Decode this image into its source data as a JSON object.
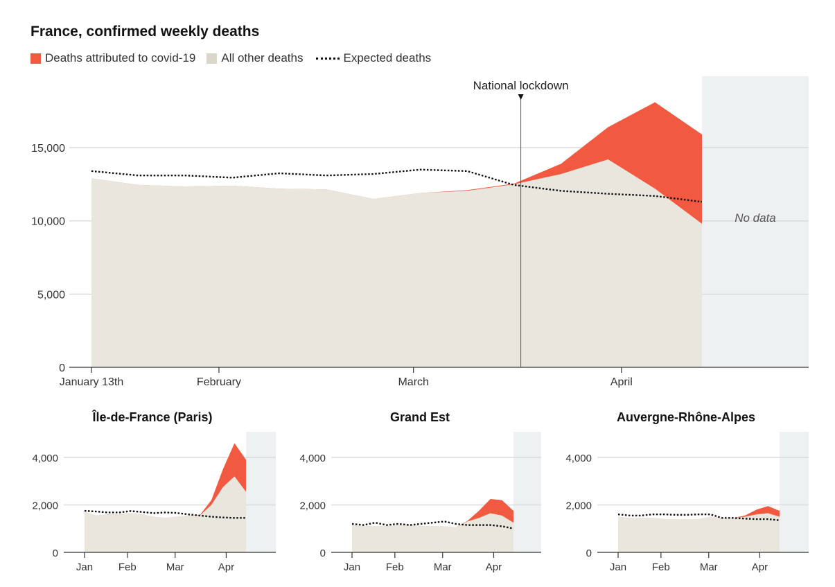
{
  "title": "France, confirmed weekly deaths",
  "legend": {
    "covid": "Deaths attributed to covid-19",
    "other": "All other deaths",
    "expected": "Expected deaths"
  },
  "colors": {
    "covid": "#f15a40",
    "other": "#e9e6de",
    "no_data": "#eef1f2",
    "grid": "#d8dcdf"
  },
  "chart_data": [
    {
      "type": "area",
      "title": "France, confirmed weekly deaths",
      "x": [
        "2020-01-13",
        "2020-01-20",
        "2020-01-27",
        "2020-02-03",
        "2020-02-10",
        "2020-02-17",
        "2020-02-24",
        "2020-03-02",
        "2020-03-09",
        "2020-03-16",
        "2020-03-23",
        "2020-03-30",
        "2020-04-06",
        "2020-04-13"
      ],
      "series": [
        {
          "name": "All other deaths",
          "values": [
            12900,
            12450,
            12350,
            12400,
            12200,
            12150,
            11500,
            11900,
            12050,
            12500,
            13200,
            14200,
            12200,
            9800
          ]
        },
        {
          "name": "Deaths attributed to covid-19",
          "values": [
            0,
            0,
            0,
            0,
            0,
            0,
            0,
            0,
            50,
            50,
            700,
            2200,
            5900,
            6100
          ]
        },
        {
          "name": "Expected deaths",
          "values": [
            13400,
            13100,
            13100,
            12950,
            13250,
            13100,
            13200,
            13500,
            13400,
            12450,
            12050,
            11850,
            11700,
            11300
          ]
        }
      ],
      "ylim": [
        0,
        18500
      ],
      "yticks": [
        "0",
        "5,000",
        "10,000",
        "15,000"
      ],
      "ytick_values": [
        0,
        5000,
        10000,
        15000
      ],
      "xticks": [
        {
          "label": "January 13th",
          "date": "2020-01-13"
        },
        {
          "label": "February",
          "date": "2020-02-01"
        },
        {
          "label": "March",
          "date": "2020-03-01"
        },
        {
          "label": "April",
          "date": "2020-04-01"
        }
      ],
      "annotation": {
        "label": "National lockdown",
        "date": "2020-03-17"
      },
      "no_data_label": "No data",
      "grid": true
    },
    {
      "type": "area",
      "title": "Île-de-France (Paris)",
      "x": [
        "2020-01-06",
        "2020-01-13",
        "2020-01-20",
        "2020-01-27",
        "2020-02-03",
        "2020-02-10",
        "2020-02-17",
        "2020-02-24",
        "2020-03-02",
        "2020-03-09",
        "2020-03-16",
        "2020-03-23",
        "2020-03-30",
        "2020-04-06",
        "2020-04-13"
      ],
      "series": [
        {
          "name": "All other deaths",
          "values": [
            1700,
            1550,
            1600,
            1600,
            1650,
            1600,
            1500,
            1450,
            1500,
            1550,
            1550,
            2000,
            2750,
            3200,
            2550
          ]
        },
        {
          "name": "Deaths attributed to covid-19",
          "values": [
            0,
            0,
            0,
            0,
            0,
            0,
            0,
            0,
            0,
            0,
            20,
            200,
            750,
            1400,
            1350
          ]
        },
        {
          "name": "Expected deaths",
          "values": [
            1750,
            1720,
            1680,
            1680,
            1740,
            1700,
            1650,
            1680,
            1660,
            1600,
            1550,
            1500,
            1470,
            1450,
            1450
          ]
        }
      ],
      "ylim": [
        0,
        5000
      ],
      "yticks": [
        "0",
        "2,000",
        "4,000"
      ],
      "ytick_values": [
        0,
        2000,
        4000
      ],
      "xticks": [
        {
          "label": "Jan",
          "date": "2020-01-06"
        },
        {
          "label": "Feb",
          "date": "2020-02-01"
        },
        {
          "label": "Mar",
          "date": "2020-03-01"
        },
        {
          "label": "Apr",
          "date": "2020-04-01"
        }
      ]
    },
    {
      "type": "area",
      "title": "Grand Est",
      "x": [
        "2020-01-06",
        "2020-01-13",
        "2020-01-20",
        "2020-01-27",
        "2020-02-03",
        "2020-02-10",
        "2020-02-17",
        "2020-02-24",
        "2020-03-02",
        "2020-03-09",
        "2020-03-16",
        "2020-03-23",
        "2020-03-30",
        "2020-04-06",
        "2020-04-13"
      ],
      "series": [
        {
          "name": "All other deaths",
          "values": [
            1150,
            1100,
            1100,
            1100,
            1150,
            1150,
            1100,
            1100,
            1100,
            1050,
            1300,
            1450,
            1650,
            1550,
            1250
          ]
        },
        {
          "name": "Deaths attributed to covid-19",
          "values": [
            0,
            0,
            0,
            0,
            0,
            0,
            0,
            0,
            0,
            0,
            20,
            300,
            600,
            650,
            500
          ]
        },
        {
          "name": "Expected deaths",
          "values": [
            1200,
            1150,
            1250,
            1150,
            1200,
            1150,
            1200,
            1250,
            1300,
            1200,
            1150,
            1150,
            1150,
            1100,
            1000
          ]
        }
      ],
      "ylim": [
        0,
        5000
      ],
      "yticks": [
        "0",
        "2,000",
        "4,000"
      ],
      "ytick_values": [
        0,
        2000,
        4000
      ],
      "xticks": [
        {
          "label": "Jan",
          "date": "2020-01-06"
        },
        {
          "label": "Feb",
          "date": "2020-02-01"
        },
        {
          "label": "Mar",
          "date": "2020-03-01"
        },
        {
          "label": "Apr",
          "date": "2020-04-01"
        }
      ]
    },
    {
      "type": "area",
      "title": "Auvergne-Rhône-Alpes",
      "x": [
        "2020-01-06",
        "2020-01-13",
        "2020-01-20",
        "2020-01-27",
        "2020-02-03",
        "2020-02-10",
        "2020-02-17",
        "2020-02-24",
        "2020-03-02",
        "2020-03-09",
        "2020-03-16",
        "2020-03-23",
        "2020-03-30",
        "2020-04-06",
        "2020-04-13"
      ],
      "series": [
        {
          "name": "All other deaths",
          "values": [
            1500,
            1450,
            1450,
            1450,
            1400,
            1400,
            1400,
            1400,
            1500,
            1450,
            1450,
            1500,
            1600,
            1650,
            1500
          ]
        },
        {
          "name": "Deaths attributed to covid-19",
          "values": [
            0,
            0,
            0,
            0,
            0,
            0,
            0,
            0,
            0,
            0,
            0,
            50,
            200,
            300,
            250
          ]
        },
        {
          "name": "Expected deaths",
          "values": [
            1600,
            1550,
            1550,
            1600,
            1600,
            1580,
            1580,
            1600,
            1600,
            1450,
            1450,
            1420,
            1400,
            1400,
            1350
          ]
        }
      ],
      "ylim": [
        0,
        5000
      ],
      "yticks": [
        "0",
        "2,000",
        "4,000"
      ],
      "ytick_values": [
        0,
        2000,
        4000
      ],
      "xticks": [
        {
          "label": "Jan",
          "date": "2020-01-06"
        },
        {
          "label": "Feb",
          "date": "2020-02-01"
        },
        {
          "label": "Mar",
          "date": "2020-03-01"
        },
        {
          "label": "Apr",
          "date": "2020-04-01"
        }
      ]
    }
  ]
}
